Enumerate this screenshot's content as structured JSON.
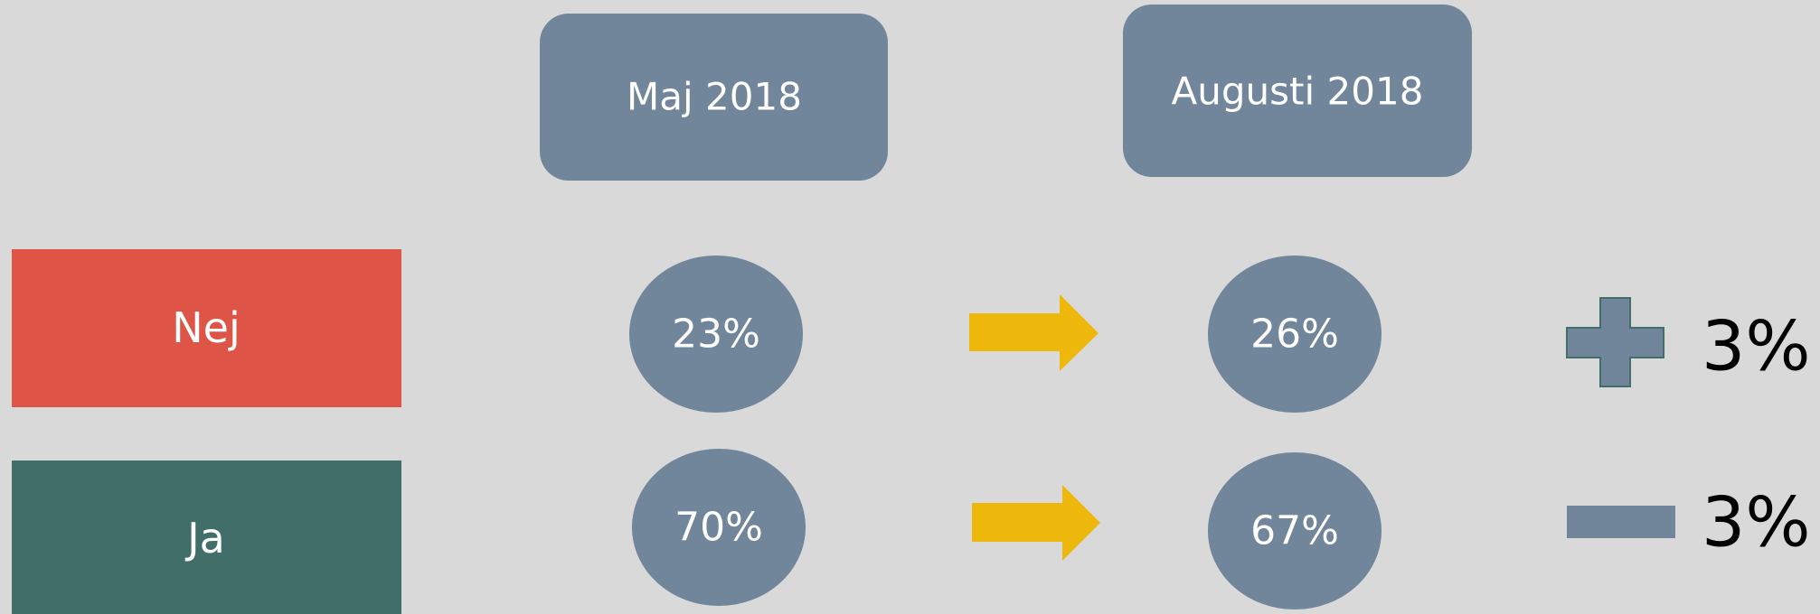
{
  "columns": [
    "Maj 2018",
    "Augusti 2018"
  ],
  "rows": [
    {
      "label": "Nej",
      "values": [
        "23%",
        "26%"
      ],
      "change": "3%"
    },
    {
      "label": "Ja",
      "values": [
        "70%",
        "67%"
      ],
      "change": "3%"
    }
  ]
}
